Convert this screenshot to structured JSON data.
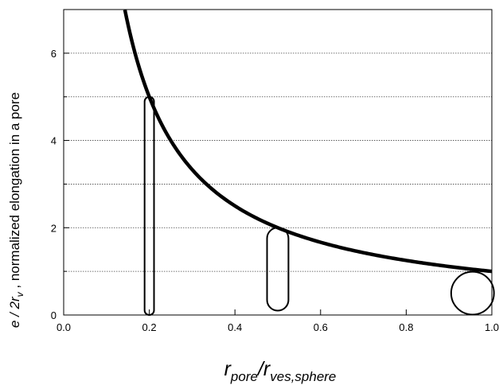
{
  "chart_data": {
    "type": "line",
    "title": "",
    "xlabel": {
      "main": "r",
      "sub1": "pore",
      "sep": "/r",
      "sub2": "ves,sphere"
    },
    "ylabel": {
      "prefix": "e / 2r",
      "sub": "v",
      "suffix": " ,   normalized elongation in a pore"
    },
    "xlim": [
      0.0,
      1.0
    ],
    "ylim": [
      0,
      7
    ],
    "xticks": [
      0.0,
      0.2,
      0.4,
      0.6,
      0.8,
      1.0
    ],
    "xtick_labels": [
      "0.0",
      "0.2",
      "0.4",
      "0.6",
      "0.8",
      "1.0"
    ],
    "yticks": [
      0,
      2,
      4,
      6
    ],
    "ytick_labels": [
      "0",
      "2",
      "4",
      "6"
    ],
    "y_minor_ticks": [
      1,
      3,
      5
    ],
    "grid": "horizontal dotted",
    "legend": "none",
    "series": [
      {
        "function": "y = 1/x",
        "x_start": 0.143,
        "x_end": 1.0,
        "color": "#000000"
      }
    ],
    "shapes": [
      {
        "kind": "capsule",
        "center_x": 0.2,
        "width_x": 0.022,
        "y_bottom": 0.0,
        "y_top": 5.0
      },
      {
        "kind": "capsule",
        "center_x": 0.5,
        "width_x": 0.05,
        "y_bottom": 0.1,
        "y_top": 2.0
      },
      {
        "kind": "circle",
        "center_x": 0.955,
        "center_y": 0.5,
        "diameter_x": 0.1
      }
    ]
  }
}
